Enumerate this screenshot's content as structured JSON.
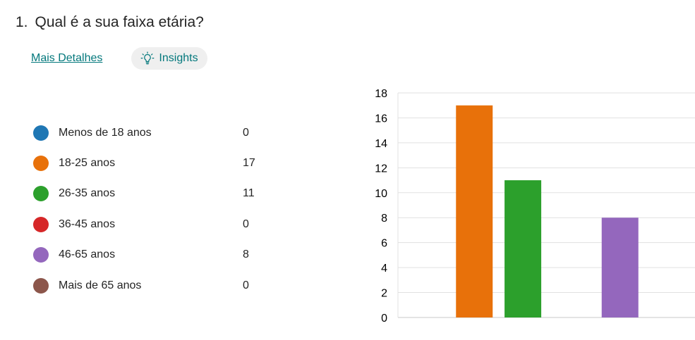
{
  "question": {
    "number": "1.",
    "title": "Qual é a sua faixa etária?"
  },
  "links": {
    "details": "Mais Detalhes",
    "insights": "Insights"
  },
  "icons": {
    "insights": "lightbulb-icon"
  },
  "legend": [
    {
      "label": "Menos de 18 anos",
      "count": "0",
      "color": "#1f77b4"
    },
    {
      "label": "18-25 anos",
      "count": "17",
      "color": "#e8710a"
    },
    {
      "label": "26-35 anos",
      "count": "11",
      "color": "#2ca02c"
    },
    {
      "label": "36-45 anos",
      "count": "0",
      "color": "#d62728"
    },
    {
      "label": "46-65 anos",
      "count": "8",
      "color": "#9467bd"
    },
    {
      "label": "Mais de 65 anos",
      "count": "0",
      "color": "#8c564b"
    }
  ],
  "chart_data": {
    "type": "bar",
    "categories": [
      "Menos de 18 anos",
      "18-25 anos",
      "26-35 anos",
      "36-45 anos",
      "46-65 anos",
      "Mais de 65 anos"
    ],
    "values": [
      0,
      17,
      11,
      0,
      8,
      0
    ],
    "colors": [
      "#1f77b4",
      "#e8710a",
      "#2ca02c",
      "#d62728",
      "#9467bd",
      "#8c564b"
    ],
    "ylim": [
      0,
      18
    ],
    "yticks": [
      0,
      2,
      4,
      6,
      8,
      10,
      12,
      14,
      16,
      18
    ],
    "grid": true,
    "legend": "left"
  }
}
